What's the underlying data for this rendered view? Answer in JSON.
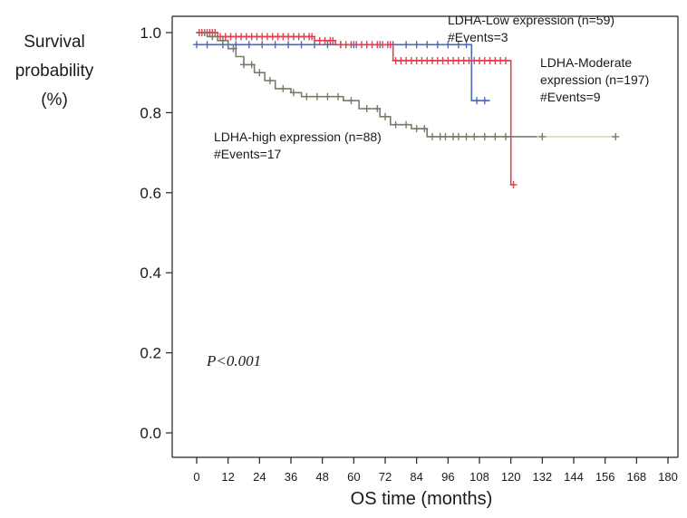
{
  "chart_data": {
    "type": "line",
    "subtype": "kaplan-meier step",
    "ylabel": [
      "Survival",
      "probability",
      "(%)"
    ],
    "xlabel": "OS time (months)",
    "xlim": [
      0,
      180
    ],
    "ylim": [
      0.0,
      1.0
    ],
    "xticks": [
      "0",
      "12",
      "24",
      "36",
      "48",
      "60",
      "72",
      "84",
      "96",
      "108",
      "120",
      "132",
      "144",
      "156",
      "168",
      "180"
    ],
    "yticks": [
      "0.0",
      "0.2",
      "0.4",
      "0.6",
      "0.8",
      "1.0"
    ],
    "grid": false,
    "annotations": [
      {
        "id": "low",
        "lines": [
          "LDHA-Low expression (n=59)",
          "#Events=3"
        ]
      },
      {
        "id": "moderate",
        "lines": [
          "LDHA-Moderate",
          "expression (n=197)",
          "#Events=9"
        ]
      },
      {
        "id": "high",
        "lines": [
          "LDHA-high expression (n=88)",
          "#Events=17"
        ]
      }
    ],
    "pvalue": "P<0.001",
    "series": [
      {
        "key": "low",
        "color": "#4a6ab5",
        "steps": [
          [
            0,
            0.97
          ],
          [
            105,
            0.97
          ],
          [
            105,
            0.83
          ],
          [
            112,
            0.83
          ]
        ],
        "censors": [
          0,
          4,
          10,
          15,
          20,
          25,
          30,
          35,
          40,
          45,
          50,
          55,
          60,
          65,
          70,
          75,
          80,
          84,
          88,
          92,
          96,
          100,
          103,
          107,
          110
        ]
      },
      {
        "key": "moderate",
        "color": "#e04050",
        "steps": [
          [
            0,
            1.0
          ],
          [
            8,
            1.0
          ],
          [
            8,
            0.99
          ],
          [
            45,
            0.99
          ],
          [
            45,
            0.98
          ],
          [
            53,
            0.98
          ],
          [
            53,
            0.97
          ],
          [
            75,
            0.97
          ],
          [
            75,
            0.93
          ],
          [
            120,
            0.93
          ],
          [
            120,
            0.62
          ],
          [
            121,
            0.62
          ]
        ],
        "censors": [
          1,
          2,
          3,
          4,
          5,
          6,
          7,
          9,
          11,
          13,
          15,
          17,
          19,
          21,
          23,
          25,
          27,
          29,
          31,
          33,
          35,
          37,
          39,
          41,
          43,
          44,
          47,
          49,
          51,
          52,
          55,
          57,
          59,
          61,
          63,
          65,
          67,
          69,
          71,
          73,
          74,
          76,
          78,
          80,
          82,
          84,
          86,
          88,
          90,
          92,
          94,
          96,
          98,
          100,
          102,
          104,
          106,
          108,
          110,
          112,
          114,
          116,
          118,
          121
        ]
      },
      {
        "key": "high",
        "color": "#7a7a6a",
        "tailcolor": "#d6dcb0",
        "steps": [
          [
            0,
            1.0
          ],
          [
            4,
            1.0
          ],
          [
            4,
            0.99
          ],
          [
            8,
            0.99
          ],
          [
            8,
            0.98
          ],
          [
            12,
            0.98
          ],
          [
            12,
            0.96
          ],
          [
            15,
            0.96
          ],
          [
            15,
            0.94
          ],
          [
            18,
            0.94
          ],
          [
            18,
            0.92
          ],
          [
            22,
            0.92
          ],
          [
            22,
            0.9
          ],
          [
            26,
            0.9
          ],
          [
            26,
            0.88
          ],
          [
            30,
            0.88
          ],
          [
            30,
            0.86
          ],
          [
            36,
            0.86
          ],
          [
            36,
            0.85
          ],
          [
            40,
            0.85
          ],
          [
            40,
            0.84
          ],
          [
            56,
            0.84
          ],
          [
            56,
            0.83
          ],
          [
            62,
            0.83
          ],
          [
            62,
            0.81
          ],
          [
            70,
            0.81
          ],
          [
            70,
            0.79
          ],
          [
            74,
            0.79
          ],
          [
            74,
            0.77
          ],
          [
            82,
            0.77
          ],
          [
            82,
            0.76
          ],
          [
            88,
            0.76
          ],
          [
            88,
            0.74
          ],
          [
            130,
            0.74
          ],
          [
            130,
            0.74
          ]
        ],
        "tail": [
          [
            130,
            0.74
          ],
          [
            160,
            0.74
          ]
        ],
        "censors": [
          3,
          6,
          10,
          14,
          18,
          21,
          24,
          28,
          33,
          37,
          42,
          46,
          50,
          54,
          59,
          65,
          69,
          72,
          76,
          80,
          84,
          87,
          90,
          93,
          95,
          98,
          100,
          103,
          106,
          110,
          114,
          118,
          132,
          160
        ]
      }
    ]
  }
}
